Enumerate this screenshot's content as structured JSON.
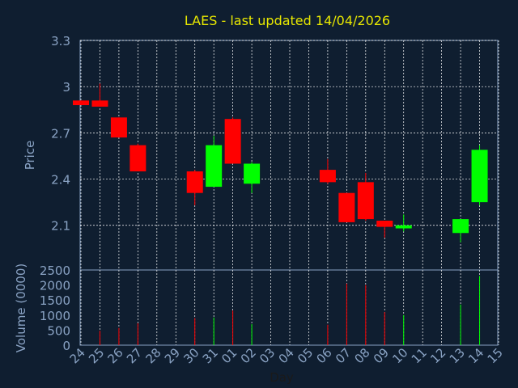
{
  "colors": {
    "background": "#0f1e30",
    "plot_background": "#0f1e30",
    "title": "#e8e800",
    "axis_text": "#8aa3c4",
    "axis_label": "#8aa3c4",
    "grid": "#ffffff",
    "up": "#00ff00",
    "down": "#ff0000"
  },
  "chart_data": [
    {
      "type": "candlestick",
      "title": "LAES - last updated 14/04/2026",
      "ylabel": "Price",
      "ylim": [
        1.81,
        3.3
      ],
      "yticks": [
        "2.1",
        "2.4",
        "2.7",
        "3",
        "3.3"
      ],
      "ytick_values": [
        2.1,
        2.4,
        2.7,
        3.0,
        3.3
      ],
      "grid": true,
      "categories": [
        "24",
        "25",
        "26",
        "27",
        "28",
        "29",
        "30",
        "31",
        "01",
        "02",
        "03",
        "04",
        "05",
        "06",
        "07",
        "08",
        "09",
        "10",
        "11",
        "12",
        "13",
        "14",
        "15"
      ],
      "candles": [
        {
          "day": "24",
          "open": 2.91,
          "high": 2.91,
          "low": 2.88,
          "close": 2.88
        },
        {
          "day": "25",
          "open": 2.91,
          "high": 3.02,
          "low": 2.87,
          "close": 2.87
        },
        {
          "day": "26",
          "open": 2.8,
          "high": 2.8,
          "low": 2.67,
          "close": 2.67
        },
        {
          "day": "27",
          "open": 2.62,
          "high": 2.63,
          "low": 2.45,
          "close": 2.45
        },
        {
          "day": "30",
          "open": 2.45,
          "high": 2.46,
          "low": 2.23,
          "close": 2.31
        },
        {
          "day": "31",
          "open": 2.35,
          "high": 2.68,
          "low": 2.35,
          "close": 2.62
        },
        {
          "day": "01",
          "open": 2.79,
          "high": 2.8,
          "low": 2.5,
          "close": 2.5
        },
        {
          "day": "02",
          "open": 2.37,
          "high": 2.51,
          "low": 2.31,
          "close": 2.5
        },
        {
          "day": "06",
          "open": 2.46,
          "high": 2.53,
          "low": 2.37,
          "close": 2.38
        },
        {
          "day": "07",
          "open": 2.31,
          "high": 2.31,
          "low": 2.12,
          "close": 2.12
        },
        {
          "day": "08",
          "open": 2.38,
          "high": 2.44,
          "low": 2.13,
          "close": 2.14
        },
        {
          "day": "09",
          "open": 2.13,
          "high": 2.13,
          "low": 2.02,
          "close": 2.09
        },
        {
          "day": "10",
          "open": 2.08,
          "high": 2.17,
          "low": 2.06,
          "close": 2.1
        },
        {
          "day": "13",
          "open": 2.05,
          "high": 2.14,
          "low": 1.99,
          "close": 2.14
        },
        {
          "day": "14",
          "open": 2.25,
          "high": 2.62,
          "low": 2.23,
          "close": 2.59
        }
      ]
    },
    {
      "type": "bar",
      "ylabel": "Volume (0000)",
      "xlabel": "Day",
      "ylim": [
        0,
        2500
      ],
      "yticks": [
        "0",
        "500",
        "1000",
        "1500",
        "2000",
        "2500"
      ],
      "ytick_values": [
        0,
        500,
        1000,
        1500,
        2000,
        2500
      ],
      "categories": [
        "24",
        "25",
        "26",
        "27",
        "28",
        "29",
        "30",
        "31",
        "01",
        "02",
        "03",
        "04",
        "05",
        "06",
        "07",
        "08",
        "09",
        "10",
        "11",
        "12",
        "13",
        "14",
        "15"
      ],
      "bars": [
        {
          "day": "24",
          "value": 0,
          "direction": "down"
        },
        {
          "day": "25",
          "value": 480,
          "direction": "down"
        },
        {
          "day": "26",
          "value": 570,
          "direction": "down"
        },
        {
          "day": "27",
          "value": 730,
          "direction": "down"
        },
        {
          "day": "30",
          "value": 900,
          "direction": "down"
        },
        {
          "day": "31",
          "value": 920,
          "direction": "up"
        },
        {
          "day": "01",
          "value": 1150,
          "direction": "down"
        },
        {
          "day": "02",
          "value": 700,
          "direction": "up"
        },
        {
          "day": "06",
          "value": 680,
          "direction": "down"
        },
        {
          "day": "07",
          "value": 2050,
          "direction": "down"
        },
        {
          "day": "08",
          "value": 2000,
          "direction": "down"
        },
        {
          "day": "09",
          "value": 1100,
          "direction": "down"
        },
        {
          "day": "10",
          "value": 1000,
          "direction": "up"
        },
        {
          "day": "13",
          "value": 1350,
          "direction": "up"
        },
        {
          "day": "14",
          "value": 2300,
          "direction": "up"
        }
      ]
    }
  ]
}
